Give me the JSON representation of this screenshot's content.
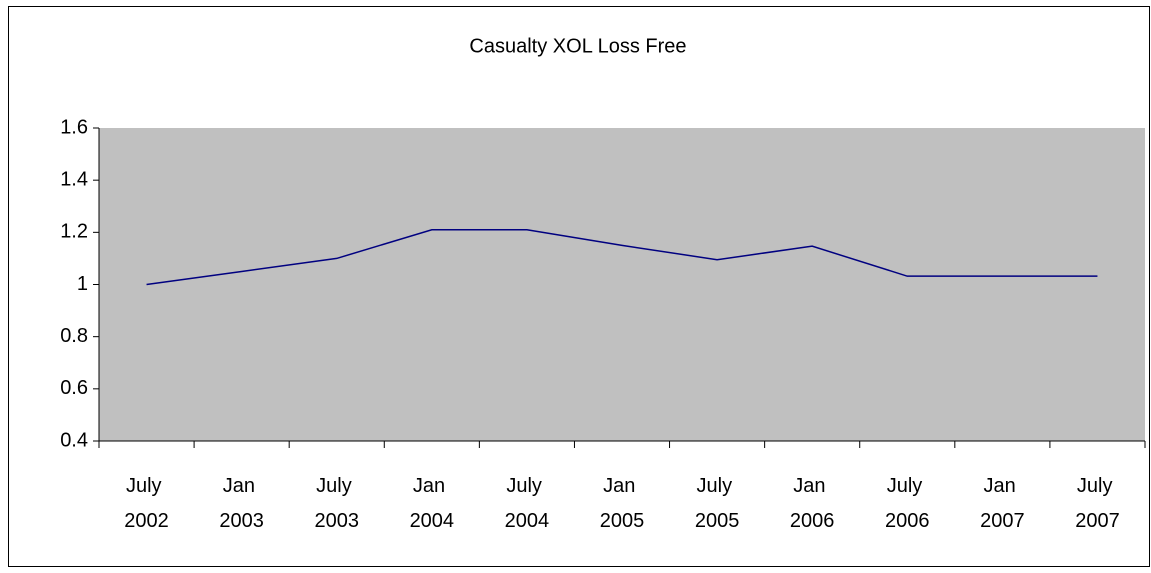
{
  "chart_data": {
    "type": "line",
    "title": "Casualty XOL Loss Free",
    "categories": [
      "July 2002",
      "Jan 2003",
      "July 2003",
      "Jan 2004",
      "July 2004",
      "Jan 2005",
      "July 2005",
      "Jan 2006",
      "July 2006",
      "Jan 2007",
      "July 2007"
    ],
    "series": [
      {
        "name": "Casualty XOL Loss Free",
        "color": "#000080",
        "values": [
          1.0,
          1.05,
          1.1,
          1.21,
          1.21,
          1.15,
          1.095,
          1.147,
          1.032,
          1.032,
          1.032
        ]
      }
    ],
    "ylim": [
      0.4,
      1.6
    ],
    "yticks": [
      0.4,
      0.6,
      0.8,
      1,
      1.2,
      1.4,
      1.6
    ],
    "plot_background": "#c0c0c0"
  }
}
